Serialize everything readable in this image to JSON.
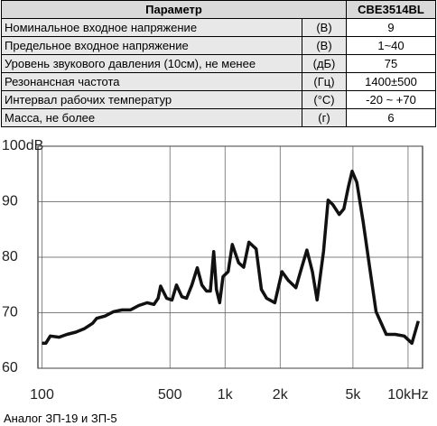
{
  "table": {
    "header": [
      "Параметр",
      "CBE3514BL"
    ],
    "rows": [
      [
        "Номинальное входное напряжение",
        "(В)",
        "9"
      ],
      [
        "Предельное входное напряжение",
        "(В)",
        "1~40"
      ],
      [
        "Уровень звукового давления (10см), не менее",
        "(дБ)",
        "75"
      ],
      [
        "Резонансная частота",
        "(Гц)",
        "1400±500"
      ],
      [
        "Интервал рабочих температур",
        "(°C)",
        "-20 ~ +70"
      ],
      [
        "Масса, не более",
        "(г)",
        "6"
      ]
    ]
  },
  "chart_data": {
    "type": "line",
    "log_x": true,
    "color": "#111111",
    "grid": true,
    "x": [
      100,
      105,
      111,
      124,
      137,
      153,
      170,
      189,
      199,
      221,
      246,
      274,
      304,
      338,
      376,
      409,
      431,
      445,
      480,
      513,
      543,
      581,
      616,
      659,
      705,
      747,
      792,
      832,
      867,
      897,
      935,
      975,
      1040,
      1096,
      1186,
      1265,
      1351,
      1480,
      1580,
      1687,
      1872,
      2047,
      2220,
      2437,
      2583,
      2800,
      3001,
      3184,
      3451,
      3657,
      3875,
      4204,
      4455,
      4721,
      4945,
      5248,
      5689,
      6166,
      6683,
      7601,
      8511,
      9528,
      10500,
      11376
    ],
    "values": [
      64.5,
      64.5,
      65.8,
      65.6,
      66.1,
      66.5,
      67.1,
      68.1,
      69.0,
      69.4,
      70.2,
      70.5,
      70.5,
      71.3,
      71.8,
      71.5,
      72.6,
      74.8,
      72.6,
      72.3,
      75.0,
      72.9,
      72.6,
      75.0,
      78.1,
      75.0,
      73.9,
      73.9,
      81.0,
      74.2,
      71.8,
      76.5,
      77.4,
      82.3,
      79.0,
      78.2,
      82.7,
      81.5,
      74.2,
      72.6,
      71.8,
      77.4,
      75.8,
      74.5,
      77.4,
      81.3,
      77.4,
      72.3,
      81.0,
      90.3,
      89.5,
      87.7,
      88.7,
      92.7,
      95.5,
      93.5,
      86.3,
      78.2,
      70.2,
      66.1,
      66.1,
      65.8,
      64.5,
      68.5
    ],
    "xlim": [
      95,
      12000
    ],
    "xticks": [
      100,
      500,
      {
        "value": 1000,
        "label": "1k"
      },
      {
        "value": 2000,
        "label": "2k"
      },
      {
        "value": 5000,
        "label": "5k"
      },
      {
        "value": 10000,
        "label": "10kHz"
      }
    ],
    "ylim": [
      60,
      100
    ],
    "yticks": [
      60,
      70,
      80,
      90,
      {
        "value": 100,
        "label": "100dB"
      }
    ]
  },
  "caption": "Аналог ЗП-19 и ЗП-5"
}
